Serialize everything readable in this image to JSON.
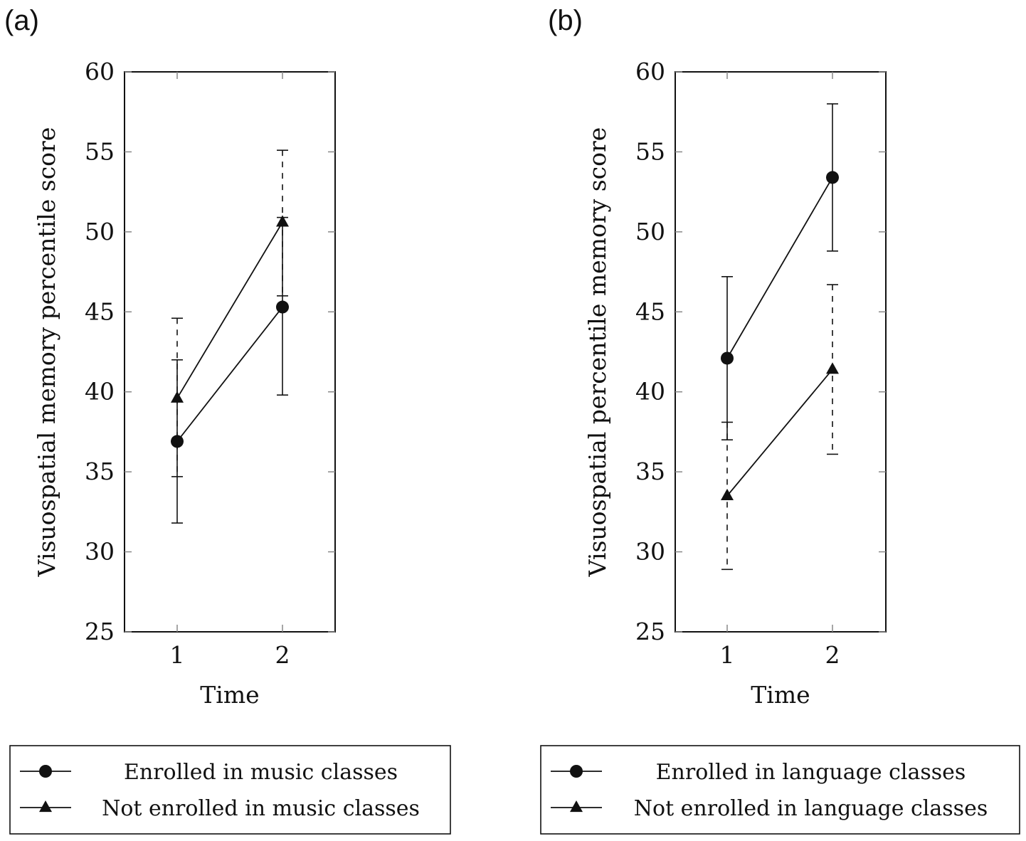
{
  "chart_data": [
    {
      "type": "line",
      "panel_label": "(a)",
      "title": "",
      "xlabel": "Time",
      "ylabel": "Visuospatial memory percentile score",
      "x": [
        1,
        2
      ],
      "x_ticks": [
        "1",
        "2"
      ],
      "ylim": [
        25,
        60
      ],
      "y_ticks": [
        "25",
        "30",
        "35",
        "40",
        "45",
        "50",
        "55",
        "60"
      ],
      "grid": false,
      "legend_position": "below",
      "series": [
        {
          "name": "Enrolled in music classes",
          "marker": "circle",
          "error_style": "solid",
          "values": [
            36.9,
            45.3
          ],
          "lower": [
            31.8,
            39.8
          ],
          "upper": [
            42.0,
            50.9
          ]
        },
        {
          "name": "Not enrolled in music classes",
          "marker": "triangle",
          "error_style": "dashed",
          "values": [
            39.6,
            50.6
          ],
          "lower": [
            34.7,
            46.0
          ],
          "upper": [
            44.6,
            55.1
          ]
        }
      ]
    },
    {
      "type": "line",
      "panel_label": "(b)",
      "title": "",
      "xlabel": "Time",
      "ylabel": "Visuospatial percentile memory score",
      "x": [
        1,
        2
      ],
      "x_ticks": [
        "1",
        "2"
      ],
      "ylim": [
        25,
        60
      ],
      "y_ticks": [
        "25",
        "30",
        "35",
        "40",
        "45",
        "50",
        "55",
        "60"
      ],
      "grid": false,
      "legend_position": "below",
      "series": [
        {
          "name": "Enrolled in language classes",
          "marker": "circle",
          "error_style": "solid",
          "values": [
            42.1,
            53.4
          ],
          "lower": [
            37.0,
            48.8
          ],
          "upper": [
            47.2,
            58.0
          ]
        },
        {
          "name": "Not enrolled in language classes",
          "marker": "triangle",
          "error_style": "dashed",
          "values": [
            33.5,
            41.4
          ],
          "lower": [
            28.9,
            36.1
          ],
          "upper": [
            38.1,
            46.7
          ]
        }
      ]
    }
  ]
}
